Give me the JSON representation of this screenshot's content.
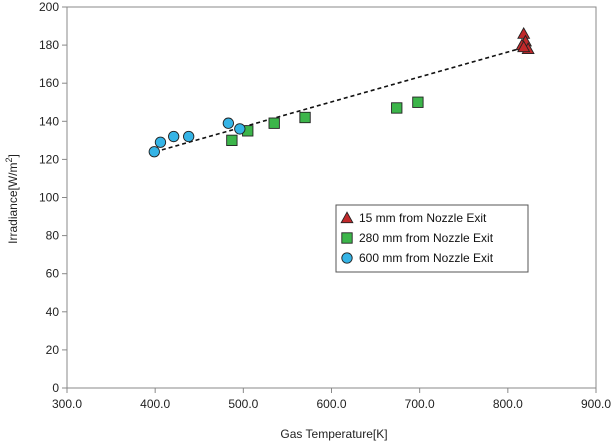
{
  "chart_data": {
    "type": "scatter",
    "xlabel": "Gas Temperature[K]",
    "ylabel": "Irradiance[W/m",
    "ylabel_sup": "2",
    "ylabel_end": "]",
    "xlim": [
      300,
      900
    ],
    "ylim": [
      0,
      200
    ],
    "xticks": [
      {
        "value": 300,
        "label": "300.0"
      },
      {
        "value": 400,
        "label": "400.0"
      },
      {
        "value": 500,
        "label": "500.0"
      },
      {
        "value": 600,
        "label": "600.0"
      },
      {
        "value": 700,
        "label": "700.0"
      },
      {
        "value": 800,
        "label": "800.0"
      },
      {
        "value": 900,
        "label": "900.0"
      }
    ],
    "yticks": [
      {
        "value": 0,
        "label": "0"
      },
      {
        "value": 20,
        "label": "20"
      },
      {
        "value": 40,
        "label": "40"
      },
      {
        "value": 60,
        "label": "60"
      },
      {
        "value": 80,
        "label": "80"
      },
      {
        "value": 100,
        "label": "100"
      },
      {
        "value": 120,
        "label": "120"
      },
      {
        "value": 140,
        "label": "140"
      },
      {
        "value": 160,
        "label": "160"
      },
      {
        "value": 180,
        "label": "180"
      },
      {
        "value": 200,
        "label": "200"
      }
    ],
    "grid": false,
    "legend_position": "center-right",
    "series": [
      {
        "name": "15 mm from Nozzle Exit",
        "marker": "triangle",
        "color": "#c0292b",
        "x": [
          818,
          820,
          816,
          823,
          818
        ],
        "y": [
          186,
          182,
          180,
          178,
          179
        ]
      },
      {
        "name": "280 mm from Nozzle Exit",
        "marker": "square",
        "color": "#3cb54a",
        "x": [
          487,
          505,
          535,
          570,
          674,
          698
        ],
        "y": [
          130,
          135,
          139,
          142,
          147,
          150
        ]
      },
      {
        "name": "600 mm from Nozzle Exit",
        "marker": "circle",
        "color": "#35b4e6",
        "x": [
          399,
          406,
          421,
          438,
          483,
          496
        ],
        "y": [
          124,
          129,
          132,
          132,
          139,
          136
        ]
      }
    ],
    "trendline": {
      "style": "dashed",
      "color": "#111111",
      "x": [
        400,
        820
      ],
      "y": [
        124,
        179
      ]
    }
  }
}
